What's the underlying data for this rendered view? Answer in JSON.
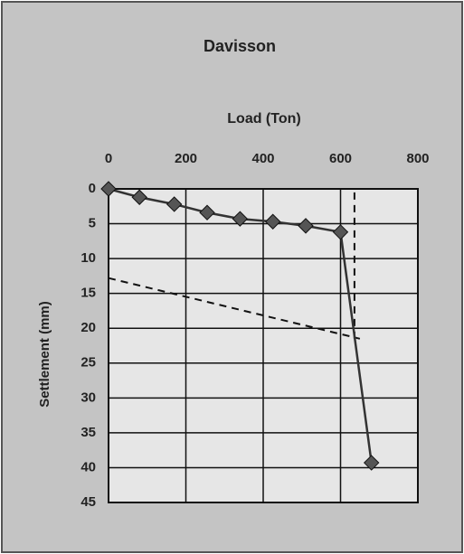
{
  "chart_data": {
    "type": "line",
    "title": "Davisson",
    "x_label": "Load (Ton)",
    "y_label": "Settlement (mm)",
    "xlim": [
      0,
      800
    ],
    "xticks": [
      0,
      200,
      400,
      600,
      800
    ],
    "ylim": [
      45,
      0
    ],
    "yticks": [
      0,
      5,
      10,
      15,
      20,
      25,
      30,
      35,
      40,
      45
    ],
    "grid": true,
    "x_axis_position": "top",
    "y_inverted": true,
    "series": [
      {
        "color": "#333333",
        "marker": "diamond",
        "x": [
          0,
          80,
          170,
          255,
          340,
          425,
          510,
          600,
          680
        ],
        "values": [
          0,
          1.2,
          2.2,
          3.4,
          4.3,
          4.7,
          5.3,
          6.2,
          39.3
        ]
      }
    ],
    "reference_lines": [
      {
        "x": [
          0,
          650
        ],
        "values": [
          12.8,
          21.5
        ],
        "style": "dashed"
      },
      {
        "x": [
          636,
          636
        ],
        "values": [
          0.5,
          21.5
        ],
        "style": "dashed"
      }
    ]
  }
}
